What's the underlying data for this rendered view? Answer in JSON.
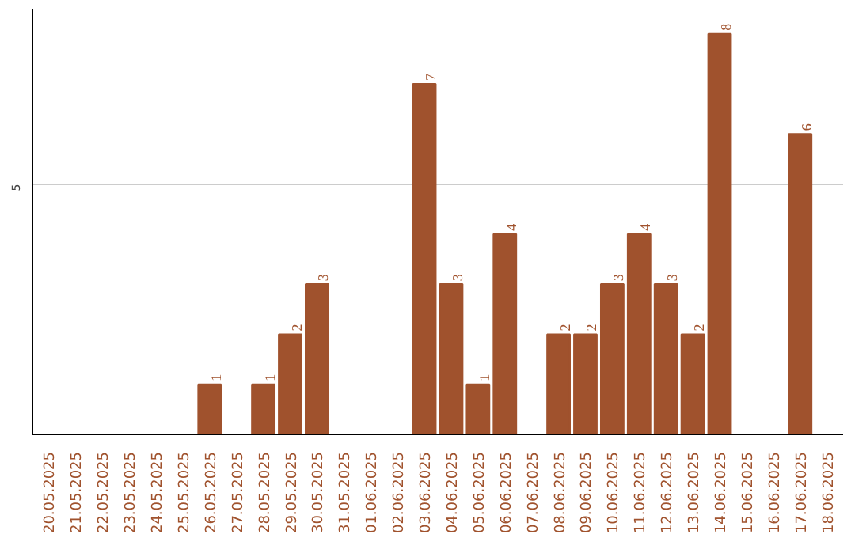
{
  "chart_data": {
    "type": "bar",
    "categories": [
      "20.05.2025",
      "21.05.2025",
      "22.05.2025",
      "23.05.2025",
      "24.05.2025",
      "25.05.2025",
      "26.05.2025",
      "27.05.2025",
      "28.05.2025",
      "29.05.2025",
      "30.05.2025",
      "31.05.2025",
      "01.06.2025",
      "02.06.2025",
      "03.06.2025",
      "04.06.2025",
      "05.06.2025",
      "06.06.2025",
      "07.06.2025",
      "08.06.2025",
      "09.06.2025",
      "10.06.2025",
      "11.06.2025",
      "12.06.2025",
      "13.06.2025",
      "14.06.2025",
      "15.06.2025",
      "16.06.2025",
      "17.06.2025",
      "18.06.2025"
    ],
    "values": [
      0,
      0,
      0,
      0,
      0,
      0,
      1,
      0,
      1,
      2,
      3,
      0,
      0,
      0,
      7,
      3,
      1,
      4,
      0,
      2,
      2,
      3,
      4,
      3,
      2,
      8,
      0,
      0,
      6,
      0
    ],
    "value_labels": [
      null,
      null,
      null,
      null,
      null,
      null,
      "1",
      null,
      "1",
      "2",
      "3",
      null,
      null,
      null,
      "7",
      "3",
      "1",
      "4",
      null,
      "2",
      "2",
      "3",
      "4",
      "3",
      "2",
      "8",
      null,
      null,
      "6",
      null
    ],
    "color": "#a0522d",
    "ylim": [
      0,
      8.5
    ],
    "yticks": [
      5
    ],
    "grid": "y"
  }
}
